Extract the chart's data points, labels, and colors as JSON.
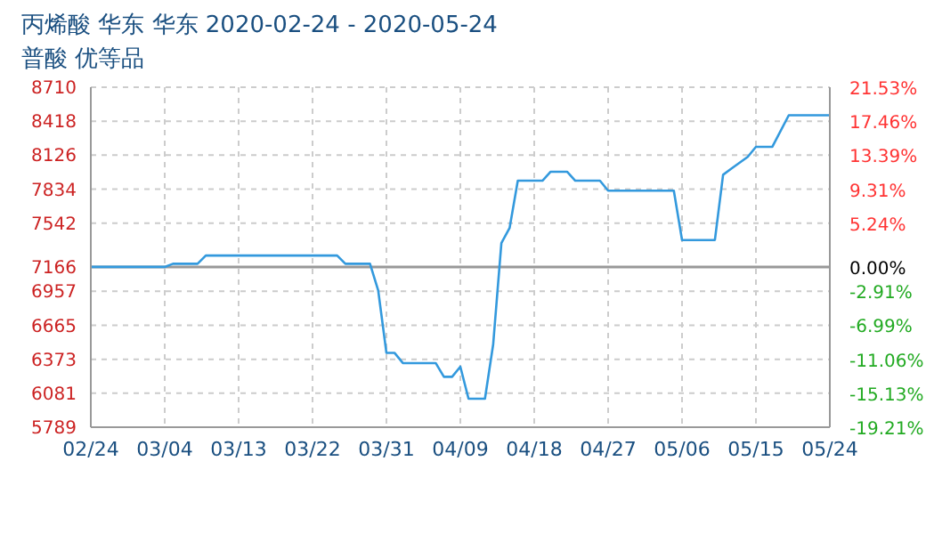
{
  "chart_data": {
    "type": "line",
    "title": "丙烯酸 华东 华东 2020-02-24 - 2020-05-24",
    "subtitle": "普酸 优等品",
    "x": [
      "2020-02-24",
      "2020-03-04",
      "2020-03-05",
      "2020-03-08",
      "2020-03-09",
      "2020-03-25",
      "2020-03-26",
      "2020-03-29",
      "2020-03-30",
      "2020-03-31",
      "2020-04-01",
      "2020-04-02",
      "2020-04-06",
      "2020-04-07",
      "2020-04-08",
      "2020-04-09",
      "2020-04-10",
      "2020-04-12",
      "2020-04-13",
      "2020-04-14",
      "2020-04-15",
      "2020-04-16",
      "2020-04-19",
      "2020-04-20",
      "2020-04-22",
      "2020-04-23",
      "2020-04-26",
      "2020-04-27",
      "2020-05-05",
      "2020-05-06",
      "2020-05-10",
      "2020-05-11",
      "2020-05-12",
      "2020-05-14",
      "2020-05-15",
      "2020-05-17",
      "2020-05-19",
      "2020-05-24"
    ],
    "series": [
      {
        "color": "#3399dd",
        "values": [
          7166,
          7166,
          7193,
          7193,
          7264,
          7264,
          7193,
          7193,
          6963,
          6427,
          6427,
          6340,
          6340,
          6222,
          6222,
          6309,
          6034,
          6034,
          6500,
          7371,
          7500,
          7907,
          7907,
          7984,
          7984,
          7907,
          7907,
          7821,
          7821,
          7397,
          7397,
          7958,
          8010,
          8112,
          8198,
          8198,
          8469,
          8469
        ]
      }
    ],
    "xlim": [
      "2020-02-24",
      "2020-05-24"
    ],
    "xticks": [
      {
        "value": "2020-02-24",
        "label": "02/24"
      },
      {
        "value": "2020-03-04",
        "label": "03/04"
      },
      {
        "value": "2020-03-13",
        "label": "03/13"
      },
      {
        "value": "2020-03-22",
        "label": "03/22"
      },
      {
        "value": "2020-03-31",
        "label": "03/31"
      },
      {
        "value": "2020-04-09",
        "label": "04/09"
      },
      {
        "value": "2020-04-18",
        "label": "04/18"
      },
      {
        "value": "2020-04-27",
        "label": "04/27"
      },
      {
        "value": "2020-05-06",
        "label": "05/06"
      },
      {
        "value": "2020-05-15",
        "label": "05/15"
      },
      {
        "value": "2020-05-24",
        "label": "05/24"
      }
    ],
    "ylim": [
      5789,
      8710
    ],
    "yticks": [
      5789,
      6081,
      6373,
      6665,
      6957,
      7166,
      7542,
      7834,
      8126,
      8418,
      8710
    ],
    "y2lim": [
      -19.21,
      21.53
    ],
    "y2ticks": [
      {
        "value": -19.21,
        "label": "-19.21%"
      },
      {
        "value": -15.13,
        "label": "-15.13%"
      },
      {
        "value": -11.06,
        "label": "-11.06%"
      },
      {
        "value": -6.99,
        "label": "-6.99%"
      },
      {
        "value": -2.91,
        "label": "-2.91%"
      },
      {
        "value": 0,
        "label": "0.00%"
      },
      {
        "value": 5.24,
        "label": "5.24%"
      },
      {
        "value": 9.31,
        "label": "9.31%"
      },
      {
        "value": 13.39,
        "label": "13.39%"
      },
      {
        "value": 17.46,
        "label": "17.46%"
      },
      {
        "value": 21.53,
        "label": "21.53%"
      }
    ],
    "ref_lines": [
      {
        "axis": "y",
        "value": 7166,
        "color": "#999999"
      }
    ],
    "grid": true,
    "marker": "none",
    "line_style": "solid"
  }
}
